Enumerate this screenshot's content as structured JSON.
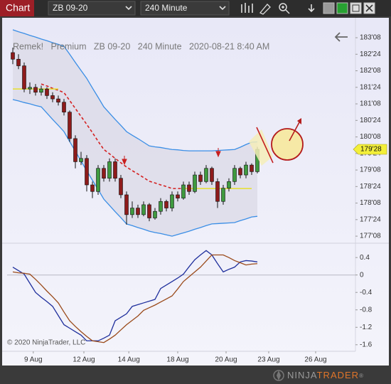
{
  "toolbar": {
    "tab": "Chart",
    "instrument": "ZB 09-20",
    "interval": "240 Minute"
  },
  "copyright": "© 2020 NinjaTrader, LLC",
  "logo": {
    "first": "NINJA",
    "second": "TRADER",
    "mark": "®"
  },
  "chart_data": [
    {
      "type": "candlestick",
      "title": "Remek!   Premium   ZB 09-20   240 Minute   2020-08-21 8:40 AM",
      "xlim": [
        -1,
        60.25
      ],
      "ylim": [
        177.08,
        183.745
      ],
      "yticks": [
        {
          "value": 183.25,
          "label": "183'08"
        },
        {
          "value": 182.75,
          "label": "182'24"
        },
        {
          "value": 182.25,
          "label": "182'08"
        },
        {
          "value": 181.75,
          "label": "181'24"
        },
        {
          "value": 181.25,
          "label": "181'08"
        },
        {
          "value": 180.75,
          "label": "180'24"
        },
        {
          "value": 180.25,
          "label": "180'08"
        },
        {
          "value": 179.75,
          "label": "179'24"
        },
        {
          "value": 179.25,
          "label": "179'08"
        },
        {
          "value": 178.75,
          "label": "178'24"
        },
        {
          "value": 178.25,
          "label": "178'08"
        },
        {
          "value": 177.75,
          "label": "177'24"
        },
        {
          "value": 177.25,
          "label": "177'08"
        }
      ],
      "up_color": "#3f9a3f",
      "down_color": "#8e1b1b",
      "open": [
        182.8,
        182.6,
        182.4,
        181.7,
        181.75,
        181.6,
        181.7,
        181.5,
        181.4,
        181.3,
        181.0,
        180.2,
        179.5,
        179.6,
        178.8,
        178.6,
        179.3,
        179.0,
        179.5,
        179.0,
        178.5,
        177.9,
        178.1,
        177.9,
        178.2,
        177.8,
        178.0,
        178.3,
        178.1,
        178.5,
        178.4,
        178.8,
        178.6,
        179.1,
        178.9,
        179.3,
        178.9,
        178.3,
        178.7,
        178.9,
        179.3,
        179.1,
        179.4,
        179.2
      ],
      "high": [
        182.95,
        182.75,
        182.5,
        181.9,
        181.85,
        181.8,
        181.75,
        181.6,
        181.5,
        181.4,
        181.05,
        180.3,
        179.8,
        179.7,
        178.9,
        179.4,
        179.4,
        179.6,
        179.6,
        179.1,
        178.6,
        178.3,
        178.2,
        178.3,
        178.25,
        178.1,
        178.4,
        178.35,
        178.6,
        178.6,
        178.9,
        178.9,
        179.2,
        179.2,
        179.4,
        179.35,
        179.0,
        178.8,
        179.0,
        179.4,
        179.35,
        179.5,
        179.45,
        179.95
      ],
      "low": [
        182.45,
        182.3,
        181.6,
        181.55,
        181.5,
        181.5,
        181.4,
        181.3,
        181.2,
        180.9,
        180.1,
        179.3,
        179.4,
        178.6,
        178.4,
        178.5,
        178.9,
        178.9,
        178.9,
        178.4,
        177.6,
        177.8,
        177.8,
        177.85,
        177.7,
        177.75,
        177.9,
        178.0,
        178.0,
        178.3,
        178.35,
        178.5,
        178.55,
        178.8,
        178.85,
        178.8,
        178.1,
        178.2,
        178.6,
        178.8,
        179.0,
        179.0,
        179.1,
        179.15
      ],
      "close": [
        182.6,
        182.4,
        181.7,
        181.75,
        181.6,
        181.7,
        181.5,
        181.4,
        181.3,
        181.0,
        180.2,
        179.5,
        179.6,
        178.8,
        178.6,
        179.3,
        179.0,
        179.5,
        179.0,
        178.5,
        177.9,
        178.1,
        177.9,
        178.2,
        177.8,
        178.0,
        178.3,
        178.1,
        178.5,
        178.4,
        178.8,
        178.6,
        179.1,
        178.9,
        179.3,
        178.9,
        178.3,
        178.7,
        178.9,
        179.3,
        179.1,
        179.4,
        179.2,
        179.875
      ],
      "bands": {
        "color": "#3a8ee6",
        "fill": "#dedde9",
        "upper": [
          183.49,
          183.43,
          183.38,
          183.32,
          183.27,
          183.21,
          183.16,
          183.1,
          183.05,
          182.99,
          182.75,
          182.5,
          182.26,
          182.02,
          181.73,
          181.45,
          181.16,
          180.97,
          180.78,
          180.6,
          180.41,
          180.3,
          180.2,
          180.09,
          179.98,
          179.95,
          179.93,
          179.9,
          179.87,
          179.86,
          179.84,
          179.83,
          179.83,
          179.83,
          179.83,
          179.83,
          179.84,
          179.85,
          179.86,
          179.87,
          179.94,
          180.02,
          180.09,
          180.1
        ],
        "lower": [
          181.38,
          181.34,
          181.29,
          181.25,
          181.2,
          181.16,
          180.97,
          180.78,
          180.6,
          180.41,
          180.11,
          179.82,
          179.52,
          179.23,
          178.94,
          178.66,
          178.37,
          178.18,
          177.99,
          177.81,
          177.62,
          177.57,
          177.51,
          177.46,
          177.4,
          177.36,
          177.33,
          177.29,
          177.25,
          177.3,
          177.35,
          177.4,
          177.46,
          177.51,
          177.57,
          177.62,
          177.63,
          177.64,
          177.65,
          177.66,
          177.72,
          177.77,
          177.83,
          177.85
        ]
      },
      "middle_lines": [
        {
          "color": "#d42020",
          "dashed": true,
          "values": [
            null,
            null,
            null,
            null,
            null,
            181.85,
            181.79,
            181.72,
            181.66,
            181.59,
            181.35,
            181.11,
            180.87,
            180.63,
            180.38,
            180.12,
            179.87,
            179.74,
            179.6,
            179.47,
            179.34,
            179.23,
            179.13,
            179.02,
            178.91,
            178.86,
            178.8,
            178.75,
            178.69,
            178.69,
            178.69,
            null,
            null,
            null,
            null,
            null,
            null,
            null,
            null,
            null,
            null,
            null,
            null,
            null
          ]
        },
        {
          "color": "#e6df2c",
          "dashed": false,
          "values": [
            181.7,
            181.7,
            181.7,
            181.7,
            181.7,
            181.7,
            181.7,
            181.7,
            181.7,
            null,
            null,
            null,
            null,
            null,
            null,
            null,
            null,
            null,
            null,
            null,
            null,
            null,
            null,
            null,
            null,
            null,
            null,
            null,
            null,
            null,
            178.69,
            178.69,
            178.69,
            178.69,
            178.69,
            178.69,
            178.69,
            178.69,
            178.69,
            178.69,
            178.69,
            178.69,
            178.69,
            null
          ]
        }
      ],
      "last_price": {
        "value": 179.875,
        "label": "179'28",
        "color": "#f3ef3a"
      }
    },
    {
      "type": "line",
      "xlim": [
        -1,
        60.25
      ],
      "xticks": [
        {
          "value": 3.6,
          "label": "9 Aug"
        },
        {
          "value": 12.5,
          "label": "12 Aug"
        },
        {
          "value": 20.4,
          "label": "14 Aug"
        },
        {
          "value": 29,
          "label": "18 Aug"
        },
        {
          "value": 37.5,
          "label": "20 Aug"
        },
        {
          "value": 45,
          "label": "23 Aug"
        },
        {
          "value": 53.25,
          "label": "26 Aug"
        }
      ],
      "ylim": [
        -1.75,
        0.68
      ],
      "yticks": [
        0.4,
        0,
        -0.4,
        -0.8,
        -1.2,
        -1.6
      ],
      "zero_line": true,
      "series": [
        {
          "color": "#1f2f9c",
          "values": [
            0.18,
            0.1,
            0.02,
            -0.19,
            -0.4,
            -0.51,
            -0.61,
            -0.72,
            -0.93,
            -1.14,
            -1.22,
            -1.3,
            -1.38,
            -1.51,
            -1.51,
            -1.51,
            -1.45,
            -1.38,
            -1.05,
            -0.97,
            -0.89,
            -0.72,
            -0.68,
            -0.64,
            -0.6,
            -0.56,
            -0.31,
            -0.23,
            -0.15,
            -0.07,
            0.02,
            0.19,
            0.35,
            0.46,
            0.56,
            0.46,
            0.26,
            0.07,
            0.13,
            0.18,
            0.3,
            0.33,
            0.32,
            0.3
          ]
        },
        {
          "color": "#9a4a1a",
          "values": [
            0.07,
            0.05,
            0.04,
            0.02,
            -0.1,
            -0.23,
            -0.37,
            -0.5,
            -0.64,
            -0.85,
            -1.05,
            -1.18,
            -1.3,
            -1.41,
            -1.51,
            -1.53,
            -1.55,
            -1.47,
            -1.38,
            -1.26,
            -1.14,
            -1.04,
            -0.94,
            -0.81,
            -0.75,
            -0.69,
            -0.62,
            -0.55,
            -0.48,
            -0.32,
            -0.15,
            -0.04,
            0.07,
            0.18,
            0.32,
            0.46,
            0.46,
            0.46,
            0.4,
            0.33,
            0.28,
            0.23,
            0.25,
            0.26
          ]
        }
      ]
    }
  ]
}
